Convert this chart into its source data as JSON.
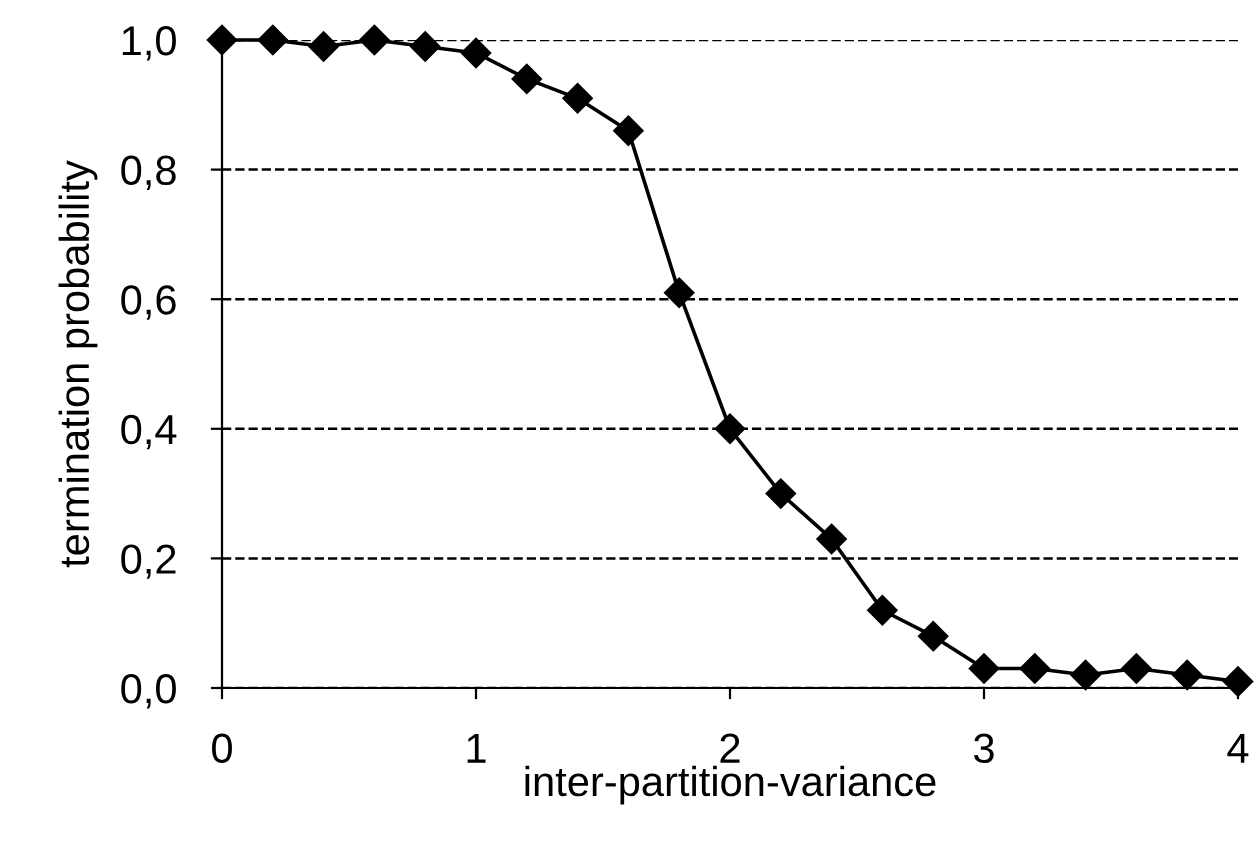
{
  "chart_data": {
    "type": "line",
    "xlabel": "inter-partition-variance",
    "ylabel": "termination probability",
    "x": [
      0,
      0.2,
      0.4,
      0.6,
      0.8,
      1.0,
      1.2,
      1.4,
      1.6,
      1.8,
      2.0,
      2.2,
      2.4,
      2.6,
      2.8,
      3.0,
      3.2,
      3.4,
      3.6,
      3.8,
      4.0
    ],
    "series": [
      {
        "color": "#000000",
        "values": [
          1.0,
          1.0,
          0.99,
          1.0,
          0.99,
          0.98,
          0.94,
          0.91,
          0.86,
          0.61,
          0.4,
          0.3,
          0.23,
          0.12,
          0.08,
          0.03,
          0.03,
          0.02,
          0.03,
          0.02,
          0.01
        ]
      }
    ],
    "xlim": [
      0,
      4
    ],
    "ylim": [
      0,
      1.0
    ],
    "xticks": [
      0,
      1,
      2,
      3,
      4
    ],
    "yticks": [
      {
        "value": 0,
        "label": "0,0"
      },
      {
        "value": 0.2,
        "label": "0,2"
      },
      {
        "value": 0.4,
        "label": "0,4"
      },
      {
        "value": 0.6,
        "label": "0,6"
      },
      {
        "value": 0.8,
        "label": "0,8"
      },
      {
        "value": 1.0,
        "label": "1,0"
      }
    ],
    "grid": "y",
    "marker": "diamond",
    "line_style": "solid"
  }
}
